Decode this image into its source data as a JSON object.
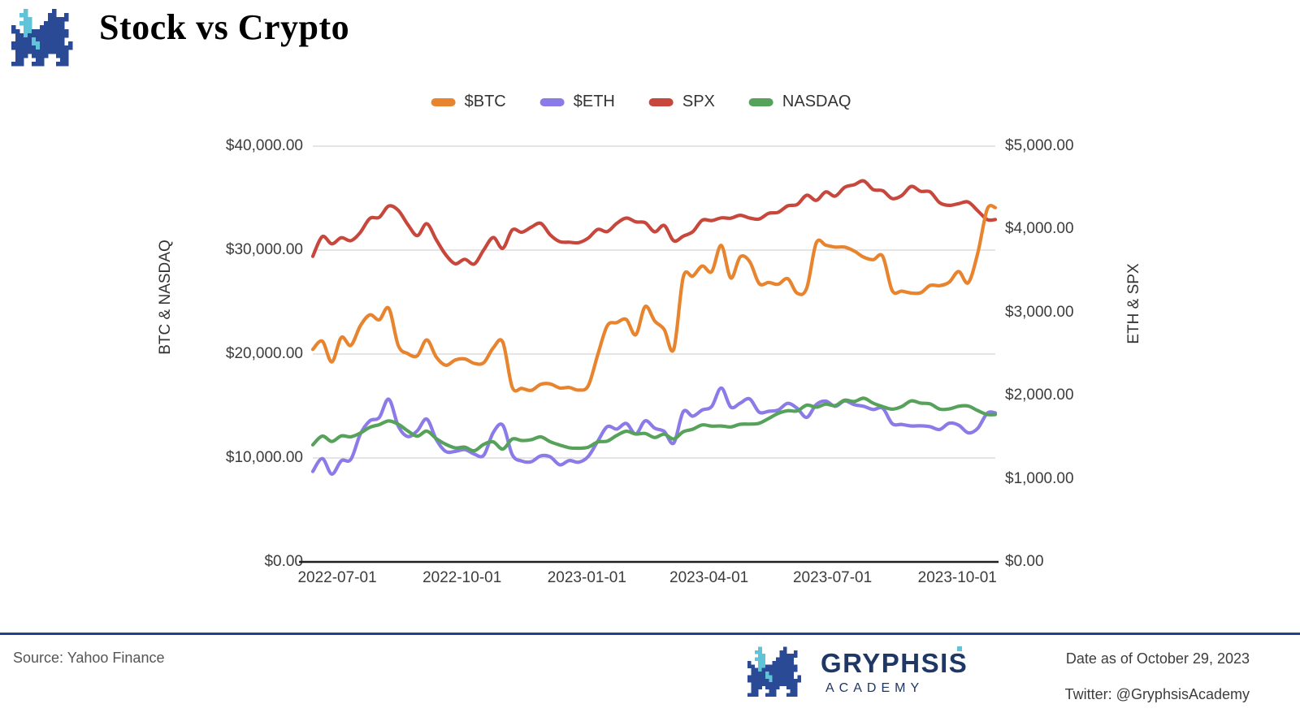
{
  "header": {
    "title": "Stock vs Crypto",
    "logo": "pixel-dragon-icon"
  },
  "chart_data": {
    "type": "line",
    "title": "Stock vs Crypto",
    "grid": "horizontal",
    "legend_position": "top-center",
    "x_domain": [
      "2022-06-13",
      "2023-10-29"
    ],
    "x_tick_labels": [
      "2022-07-01",
      "2022-10-01",
      "2023-01-01",
      "2023-04-01",
      "2023-07-01",
      "2023-10-01"
    ],
    "left_axis": {
      "title": "BTC & NASDAQ",
      "range": [
        0,
        40000
      ],
      "ticks": [
        {
          "value": 40000,
          "label": "$40,000.00"
        },
        {
          "value": 30000,
          "label": "$30,000.00"
        },
        {
          "value": 20000,
          "label": "$20,000.00"
        },
        {
          "value": 10000,
          "label": "$10,000.00"
        },
        {
          "value": 0,
          "label": "$0.00"
        }
      ]
    },
    "right_axis": {
      "title": "ETH & SPX",
      "range": [
        0,
        5000
      ],
      "ticks": [
        {
          "value": 5000,
          "label": "$5,000.00"
        },
        {
          "value": 4000,
          "label": "$4,000.00"
        },
        {
          "value": 3000,
          "label": "$3,000.00"
        },
        {
          "value": 2000,
          "label": "$2,000.00"
        },
        {
          "value": 1000,
          "label": "$1,000.00"
        },
        {
          "value": 0,
          "label": "$0.00"
        }
      ]
    },
    "x": [
      "2022-06-13",
      "2022-06-20",
      "2022-06-27",
      "2022-07-04",
      "2022-07-11",
      "2022-07-18",
      "2022-07-25",
      "2022-08-01",
      "2022-08-08",
      "2022-08-15",
      "2022-08-22",
      "2022-08-29",
      "2022-09-05",
      "2022-09-12",
      "2022-09-19",
      "2022-09-26",
      "2022-10-03",
      "2022-10-10",
      "2022-10-17",
      "2022-10-24",
      "2022-10-31",
      "2022-11-07",
      "2022-11-14",
      "2022-11-21",
      "2022-11-28",
      "2022-12-05",
      "2022-12-12",
      "2022-12-19",
      "2022-12-26",
      "2023-01-02",
      "2023-01-09",
      "2023-01-16",
      "2023-01-23",
      "2023-01-30",
      "2023-02-06",
      "2023-02-13",
      "2023-02-20",
      "2023-02-27",
      "2023-03-06",
      "2023-03-13",
      "2023-03-20",
      "2023-03-27",
      "2023-04-03",
      "2023-04-10",
      "2023-04-17",
      "2023-04-24",
      "2023-05-01",
      "2023-05-08",
      "2023-05-15",
      "2023-05-22",
      "2023-05-29",
      "2023-06-05",
      "2023-06-12",
      "2023-06-19",
      "2023-06-26",
      "2023-07-03",
      "2023-07-10",
      "2023-07-17",
      "2023-07-24",
      "2023-07-31",
      "2023-08-07",
      "2023-08-14",
      "2023-08-21",
      "2023-08-28",
      "2023-09-04",
      "2023-09-11",
      "2023-09-18",
      "2023-09-25",
      "2023-10-02",
      "2023-10-09",
      "2023-10-16",
      "2023-10-23",
      "2023-10-29"
    ],
    "series": [
      {
        "name": "$BTC",
        "color": "#E8832E",
        "axis": "left",
        "values": [
          20448,
          21231,
          19242,
          21592,
          20836,
          22706,
          23773,
          23300,
          24402,
          20818,
          20041,
          19832,
          21360,
          19701,
          18921,
          19426,
          19533,
          19100,
          19172,
          20595,
          21148,
          16795,
          16697,
          16507,
          17092,
          17128,
          16738,
          16778,
          16530,
          16950,
          19930,
          22720,
          23020,
          23330,
          21860,
          24570,
          23180,
          22360,
          20460,
          27400,
          27490,
          28470,
          27940,
          30450,
          27320,
          29340,
          28890,
          26780,
          26890,
          26710,
          27250,
          25850,
          26340,
          30690,
          30480,
          30290,
          30290,
          29910,
          29320,
          29080,
          29400,
          26100,
          26050,
          25870,
          25900,
          26600,
          26580,
          26910,
          27940,
          26860,
          29680,
          33919,
          34089
        ]
      },
      {
        "name": "$ETH",
        "color": "#8B7BE8",
        "axis": "right",
        "values": [
          1088,
          1243,
          1056,
          1217,
          1233,
          1536,
          1696,
          1737,
          1957,
          1633,
          1508,
          1577,
          1717,
          1471,
          1328,
          1329,
          1351,
          1297,
          1283,
          1557,
          1645,
          1289,
          1213,
          1205,
          1275,
          1264,
          1168,
          1219,
          1199,
          1269,
          1451,
          1627,
          1598,
          1665,
          1539,
          1697,
          1608,
          1569,
          1430,
          1807,
          1753,
          1827,
          1870,
          2092,
          1862,
          1910,
          1960,
          1801,
          1812,
          1827,
          1907,
          1847,
          1738,
          1893,
          1934,
          1871,
          1936,
          1891,
          1871,
          1833,
          1849,
          1664,
          1653,
          1635,
          1637,
          1626,
          1593,
          1668,
          1645,
          1553,
          1605,
          1788,
          1793
        ]
      },
      {
        "name": "SPX",
        "color": "#C8473C",
        "axis": "right",
        "values": [
          3675,
          3912,
          3825,
          3899,
          3863,
          3962,
          4130,
          4145,
          4280,
          4228,
          4058,
          3924,
          4067,
          3873,
          3693,
          3586,
          3640,
          3583,
          3753,
          3901,
          3771,
          3993,
          3965,
          4026,
          4072,
          3934,
          3852,
          3845,
          3840,
          3895,
          3999,
          3973,
          4071,
          4136,
          4090,
          4079,
          3970,
          4046,
          3862,
          3917,
          3971,
          4109,
          4105,
          4138,
          4134,
          4169,
          4136,
          4124,
          4192,
          4205,
          4282,
          4299,
          4410,
          4348,
          4450,
          4399,
          4505,
          4536,
          4582,
          4478,
          4464,
          4370,
          4406,
          4516,
          4457,
          4450,
          4320,
          4288,
          4309,
          4328,
          4224,
          4117,
          4117
        ]
      },
      {
        "name": "NASDAQ",
        "color": "#56A25B",
        "axis": "left",
        "values": [
          11266,
          12105,
          11586,
          12123,
          12040,
          12396,
          12948,
          13207,
          13566,
          13243,
          12605,
          12098,
          12588,
          11861,
          11311,
          10971,
          11039,
          10692,
          11310,
          11546,
          10857,
          11817,
          11677,
          11756,
          12030,
          11563,
          11244,
          10985,
          10940,
          11040,
          11541,
          11619,
          12166,
          12573,
          12304,
          12358,
          11969,
          12291,
          11830,
          12520,
          12767,
          13181,
          13062,
          13079,
          12987,
          13246,
          13259,
          13340,
          13803,
          14298,
          14547,
          14528,
          15083,
          14891,
          15179,
          15036,
          15566,
          15426,
          15751,
          15274,
          14945,
          14694,
          14942,
          15491,
          15280,
          15202,
          14702,
          14715,
          14973,
          15002,
          14561,
          14180,
          14180
        ]
      }
    ]
  },
  "footer": {
    "source": "Source: Yahoo Finance",
    "brand_name": "GRYPHSIS",
    "brand_sub": "ACADEMY",
    "date_note": "Date as of October 29, 2023",
    "twitter_note": "Twitter: @GryphsisAcademy",
    "colors": {
      "brand_navy": "#1F3765",
      "divider_blue": "#24418C",
      "accent_teal": "#5FC4D8"
    }
  }
}
